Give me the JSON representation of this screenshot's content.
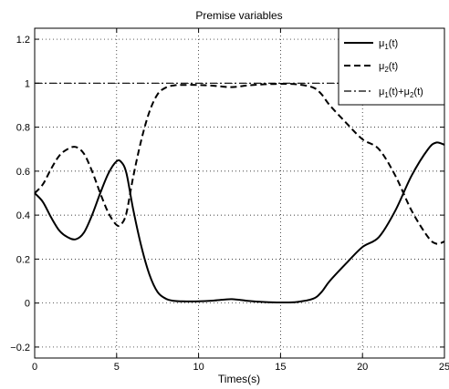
{
  "chart_data": {
    "type": "line",
    "title": "Premise variables",
    "xlabel": "Times(s)",
    "ylabel": "",
    "xlim": [
      0,
      25
    ],
    "ylim": [
      -0.25,
      1.25
    ],
    "xticks": [
      0,
      5,
      10,
      15,
      20,
      25
    ],
    "xtick_labels": [
      "0",
      "5",
      "10",
      "15",
      "20",
      "25"
    ],
    "yticks": [
      -0.2,
      0,
      0.2,
      0.4,
      0.6,
      0.8,
      1,
      1.2
    ],
    "ytick_labels": [
      "−0.2",
      "0",
      "0.2",
      "0.4",
      "0.6",
      "0.8",
      "1",
      "1.2"
    ],
    "grid": true,
    "legend_position": "top-right",
    "series": [
      {
        "name": "μ1(t)",
        "style": "solid",
        "x": [
          0,
          0.5,
          1,
          1.5,
          2,
          2.5,
          3,
          3.5,
          4,
          4.5,
          5,
          5.3,
          5.6,
          6,
          6.5,
          7,
          7.5,
          8,
          8.5,
          9,
          10,
          11,
          12,
          13,
          14,
          15,
          16,
          17,
          17.5,
          18,
          19,
          20,
          21,
          22,
          23,
          24,
          24.5,
          25
        ],
        "y": [
          0.5,
          0.46,
          0.39,
          0.33,
          0.3,
          0.29,
          0.32,
          0.4,
          0.5,
          0.59,
          0.645,
          0.64,
          0.59,
          0.43,
          0.26,
          0.13,
          0.05,
          0.02,
          0.01,
          0.008,
          0.008,
          0.012,
          0.018,
          0.01,
          0.005,
          0.003,
          0.005,
          0.02,
          0.05,
          0.1,
          0.18,
          0.255,
          0.3,
          0.42,
          0.58,
          0.7,
          0.73,
          0.72
        ]
      },
      {
        "name": "μ2(t)",
        "style": "dashed",
        "x": [
          0,
          0.5,
          1,
          1.5,
          2,
          2.5,
          3,
          3.5,
          4,
          4.5,
          5,
          5.3,
          5.6,
          6,
          6.5,
          7,
          7.5,
          8,
          8.5,
          9,
          10,
          11,
          12,
          13,
          14,
          15,
          16,
          17,
          17.5,
          18,
          19,
          20,
          21,
          22,
          23,
          24,
          24.5,
          25
        ],
        "y": [
          0.5,
          0.54,
          0.61,
          0.67,
          0.7,
          0.71,
          0.68,
          0.6,
          0.5,
          0.41,
          0.355,
          0.36,
          0.41,
          0.57,
          0.74,
          0.87,
          0.95,
          0.98,
          0.99,
          0.992,
          0.992,
          0.988,
          0.982,
          0.99,
          0.995,
          0.997,
          0.995,
          0.98,
          0.95,
          0.9,
          0.82,
          0.745,
          0.7,
          0.58,
          0.42,
          0.3,
          0.27,
          0.28
        ]
      },
      {
        "name": "μ1(t)+μ2(t)",
        "style": "dashdot",
        "x": [
          0,
          25
        ],
        "y": [
          1,
          1
        ]
      }
    ],
    "legend_entries": [
      {
        "base": "μ",
        "sub": "1",
        "rest": "(t)"
      },
      {
        "base": "μ",
        "sub": "2",
        "rest": "(t)"
      },
      {
        "base": "μ",
        "sub": "1",
        "rest": "(t)+μ",
        "sub2": "2",
        "rest2": "(t)"
      }
    ]
  }
}
